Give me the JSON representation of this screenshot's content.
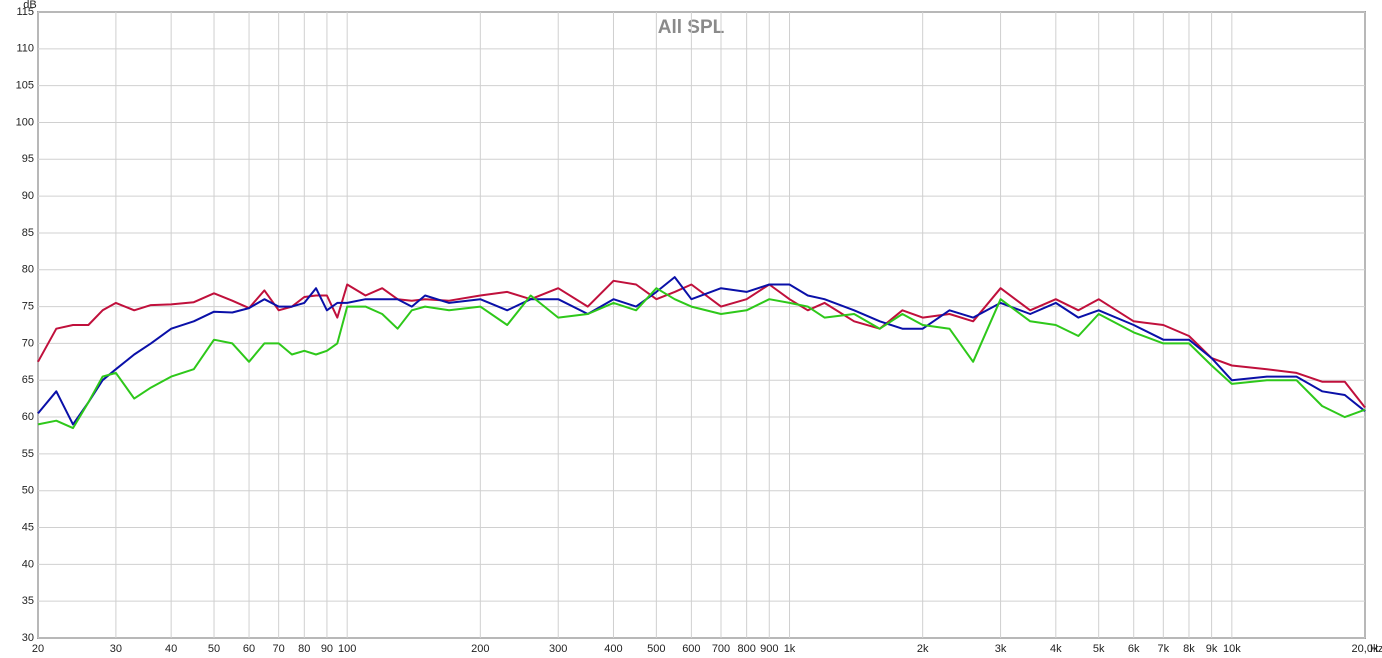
{
  "chart_data": {
    "type": "line",
    "title": "All SPL",
    "x_label": "Hz",
    "y_label": "dB",
    "log_x": true,
    "grid": true,
    "x": [
      20,
      22,
      24,
      26,
      28,
      30,
      33,
      36,
      40,
      45,
      50,
      55,
      60,
      65,
      70,
      75,
      80,
      85,
      90,
      95,
      100,
      110,
      120,
      130,
      140,
      150,
      170,
      200,
      230,
      260,
      300,
      350,
      400,
      450,
      500,
      550,
      600,
      700,
      800,
      900,
      1000,
      1100,
      1200,
      1400,
      1600,
      1800,
      2000,
      2300,
      2600,
      3000,
      3500,
      4000,
      4500,
      5000,
      6000,
      7000,
      8000,
      9000,
      10000,
      12000,
      14000,
      16000,
      18000,
      20000
    ],
    "series": [
      {
        "color": "#c0103c",
        "values": [
          67.5,
          72,
          72.5,
          72.5,
          74.5,
          75.5,
          74.5,
          75.2,
          75.3,
          75.6,
          76.8,
          75.8,
          74.8,
          77.2,
          74.5,
          75,
          76.3,
          76.5,
          76.5,
          73.5,
          78,
          76.5,
          77.5,
          76,
          75.8,
          76,
          75.8,
          76.5,
          77,
          76,
          77.5,
          75,
          78.5,
          78,
          76,
          77,
          78,
          75,
          76,
          78,
          76,
          74.5,
          75.5,
          73,
          72,
          74.5,
          73.5,
          74,
          73,
          77.5,
          74.5,
          76,
          74.5,
          76,
          73,
          72.5,
          71,
          68,
          67,
          66.5,
          66,
          64.8,
          64.8,
          61.3
        ]
      },
      {
        "color": "#0a10a8",
        "values": [
          60.5,
          63.5,
          59,
          62,
          65,
          66.5,
          68.5,
          70,
          72,
          73,
          74.3,
          74.2,
          74.8,
          76,
          75,
          75,
          75.5,
          77.5,
          74.5,
          75.5,
          75.5,
          76,
          76,
          76,
          75,
          76.5,
          75.5,
          76,
          74.5,
          76,
          76,
          74,
          76,
          75,
          77,
          79,
          76,
          77.5,
          77,
          78,
          78,
          76.5,
          76,
          74.5,
          73,
          72,
          72,
          74.5,
          73.5,
          75.5,
          74,
          75.5,
          73.5,
          74.5,
          72.5,
          70.5,
          70.5,
          68,
          65,
          65.5,
          65.5,
          63.5,
          63,
          60.8
        ]
      },
      {
        "color": "#2ec81a",
        "values": [
          59,
          59.5,
          58.5,
          62,
          65.5,
          66,
          62.5,
          64,
          65.5,
          66.5,
          70.5,
          70,
          67.5,
          70,
          70,
          68.5,
          69,
          68.5,
          69,
          70,
          75,
          75,
          74,
          72,
          74.5,
          75,
          74.5,
          75,
          72.5,
          76.5,
          73.5,
          74,
          75.5,
          74.5,
          77.5,
          76,
          75,
          74,
          74.5,
          76,
          75.5,
          75,
          73.5,
          74,
          72,
          74,
          72.5,
          72,
          67.5,
          76,
          73,
          72.5,
          71,
          74,
          71.5,
          70,
          70,
          67,
          64.5,
          65,
          65,
          61.5,
          60,
          61
        ]
      }
    ],
    "xlim": [
      20,
      20000
    ],
    "xticks": [
      20,
      30,
      40,
      50,
      60,
      70,
      80,
      90,
      100,
      200,
      300,
      400,
      500,
      600,
      700,
      800,
      900,
      {
        "value": 1000,
        "label": "1k"
      },
      {
        "value": 2000,
        "label": "2k"
      },
      {
        "value": 3000,
        "label": "3k"
      },
      {
        "value": 4000,
        "label": "4k"
      },
      {
        "value": 5000,
        "label": "5k"
      },
      {
        "value": 6000,
        "label": "6k"
      },
      {
        "value": 7000,
        "label": "7k"
      },
      {
        "value": 8000,
        "label": "8k"
      },
      {
        "value": 9000,
        "label": "9k"
      },
      {
        "value": 10000,
        "label": "10k"
      },
      {
        "value": 20000,
        "label": "20,0k"
      }
    ],
    "ylim": [
      30,
      115
    ],
    "yticks": [
      30,
      35,
      40,
      45,
      50,
      55,
      60,
      65,
      70,
      75,
      80,
      85,
      90,
      95,
      100,
      105,
      110,
      115
    ]
  }
}
